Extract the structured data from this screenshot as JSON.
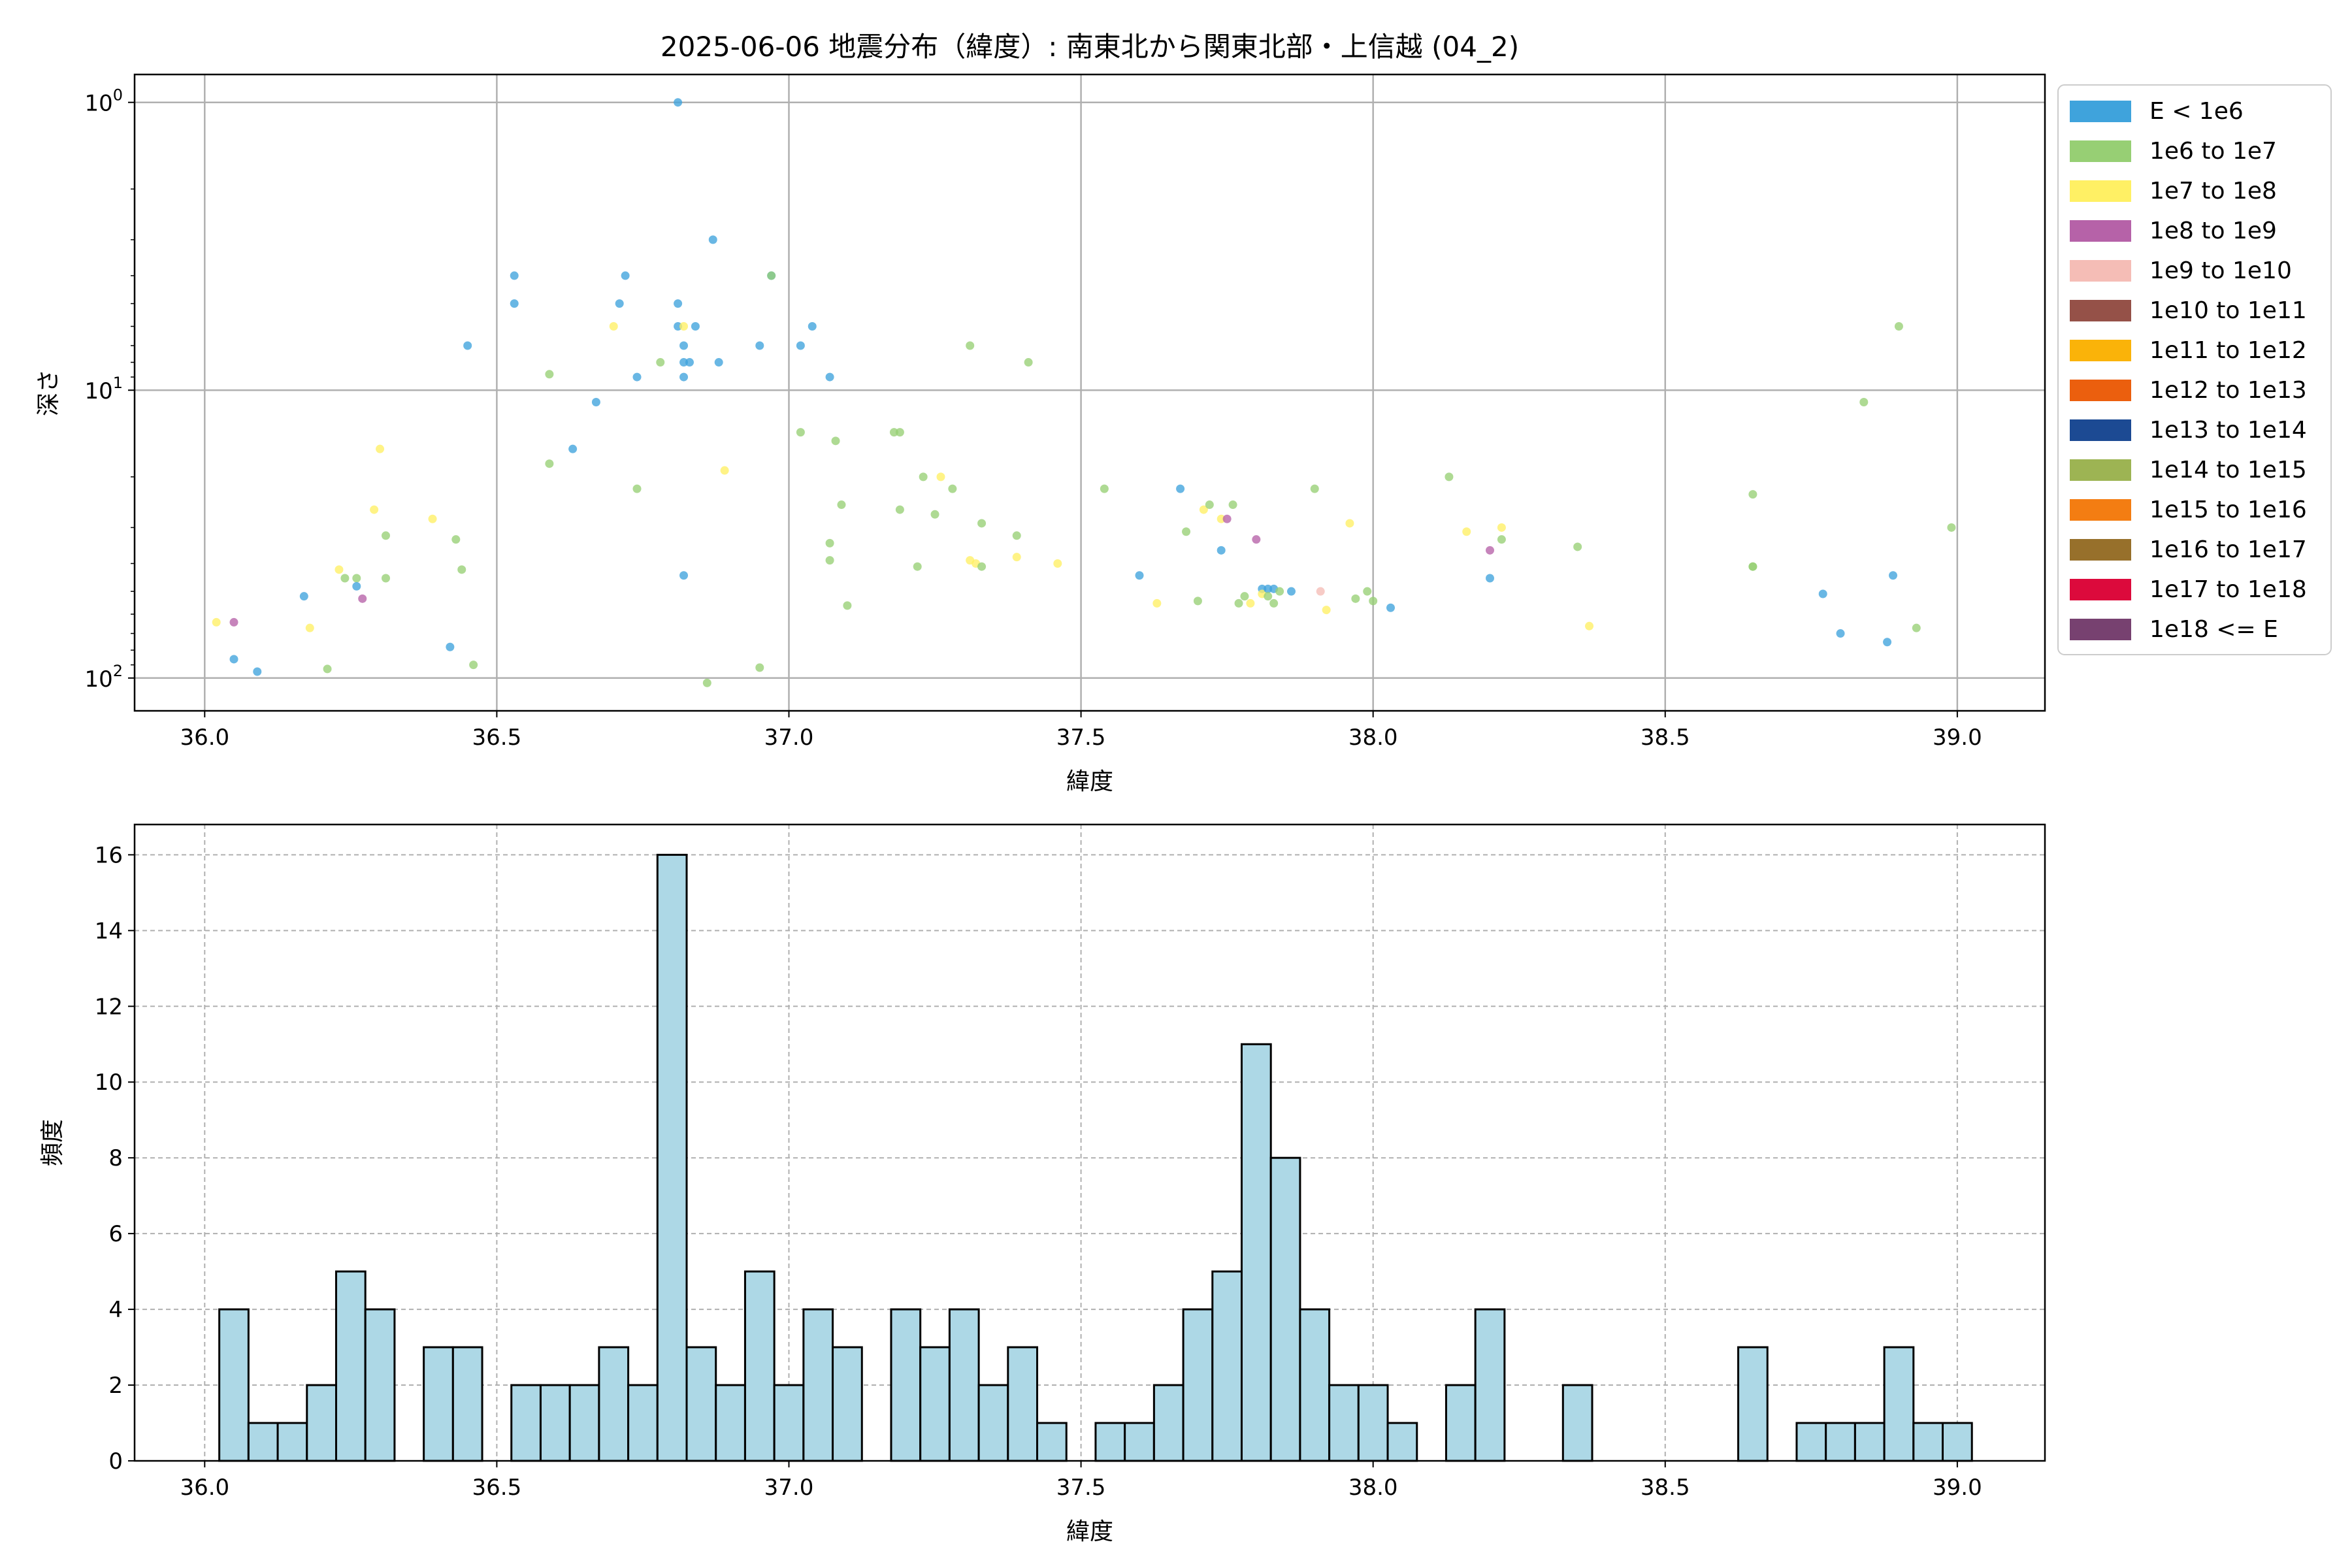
{
  "figure": {
    "title": "2025-06-06 地震分布（緯度）: 南東北から関東北部・上信越 (04_2)"
  },
  "chart_data": [
    {
      "type": "scatter",
      "title": "2025-06-06 地震分布（緯度）: 南東北から関東北部・上信越 (04_2)",
      "xlabel": "緯度",
      "ylabel": "深さ",
      "xlim": [
        35.88,
        39.15
      ],
      "ylim": [
        130,
        0.8
      ],
      "y_scale": "log",
      "y_inverted": true,
      "x_ticks": [
        "36.0",
        "36.5",
        "37.0",
        "37.5",
        "38.0",
        "38.5",
        "39.0"
      ],
      "x_tick_values": [
        36.0,
        36.5,
        37.0,
        37.5,
        38.0,
        38.5,
        39.0
      ],
      "y_ticks": [
        {
          "value": 1,
          "base": "10",
          "exp": "0"
        },
        {
          "value": 10,
          "base": "10",
          "exp": "1"
        },
        {
          "value": 100,
          "base": "10",
          "exp": "2"
        }
      ],
      "grid": true,
      "legend_position": "outside-right-top",
      "legend": [
        {
          "label": "E < 1e6",
          "color": "#3fa3dc"
        },
        {
          "label": "1e6 to 1e7",
          "color": "#97cf74"
        },
        {
          "label": "1e7 to 1e8",
          "color": "#fff064"
        },
        {
          "label": "1e8 to 1e9",
          "color": "#b662a8"
        },
        {
          "label": "1e9 to 1e10",
          "color": "#f5bdb6"
        },
        {
          "label": "1e10 to 1e11",
          "color": "#955148"
        },
        {
          "label": "1e11 to 1e12",
          "color": "#fab309"
        },
        {
          "label": "1e12 to 1e13",
          "color": "#eb5f0e"
        },
        {
          "label": "1e13 to 1e14",
          "color": "#1c4a93"
        },
        {
          "label": "1e14 to 1e15",
          "color": "#9db453"
        },
        {
          "label": "1e15 to 1e16",
          "color": "#f37d12"
        },
        {
          "label": "1e16 to 1e17",
          "color": "#97702b"
        },
        {
          "label": "1e17 to 1e18",
          "color": "#dc0a3c"
        },
        {
          "label": "1e18 <= E",
          "color": "#774170"
        }
      ],
      "points": [
        {
          "x": 36.02,
          "y": 64,
          "c": 2
        },
        {
          "x": 36.05,
          "y": 64,
          "c": 3
        },
        {
          "x": 36.05,
          "y": 86,
          "c": 0
        },
        {
          "x": 36.09,
          "y": 95,
          "c": 0
        },
        {
          "x": 36.17,
          "y": 52,
          "c": 0
        },
        {
          "x": 36.18,
          "y": 67,
          "c": 2
        },
        {
          "x": 36.21,
          "y": 93,
          "c": 1
        },
        {
          "x": 36.23,
          "y": 42,
          "c": 2
        },
        {
          "x": 36.24,
          "y": 45,
          "c": 1
        },
        {
          "x": 36.26,
          "y": 45,
          "c": 1
        },
        {
          "x": 36.26,
          "y": 48,
          "c": 0
        },
        {
          "x": 36.27,
          "y": 53,
          "c": 3
        },
        {
          "x": 36.29,
          "y": 26,
          "c": 2
        },
        {
          "x": 36.3,
          "y": 16,
          "c": 2
        },
        {
          "x": 36.31,
          "y": 45,
          "c": 1
        },
        {
          "x": 36.31,
          "y": 32,
          "c": 1
        },
        {
          "x": 36.39,
          "y": 28,
          "c": 2
        },
        {
          "x": 36.42,
          "y": 78,
          "c": 0
        },
        {
          "x": 36.43,
          "y": 33,
          "c": 1
        },
        {
          "x": 36.44,
          "y": 42,
          "c": 1
        },
        {
          "x": 36.45,
          "y": 7,
          "c": 0
        },
        {
          "x": 36.46,
          "y": 90,
          "c": 1
        },
        {
          "x": 36.53,
          "y": 4,
          "c": 0
        },
        {
          "x": 36.53,
          "y": 5,
          "c": 0
        },
        {
          "x": 36.59,
          "y": 8.8,
          "c": 1
        },
        {
          "x": 36.59,
          "y": 18,
          "c": 1
        },
        {
          "x": 36.63,
          "y": 16,
          "c": 0
        },
        {
          "x": 36.67,
          "y": 11,
          "c": 0
        },
        {
          "x": 36.7,
          "y": 6,
          "c": 2
        },
        {
          "x": 36.71,
          "y": 5,
          "c": 0
        },
        {
          "x": 36.72,
          "y": 4,
          "c": 0
        },
        {
          "x": 36.74,
          "y": 9,
          "c": 0
        },
        {
          "x": 36.74,
          "y": 22,
          "c": 1
        },
        {
          "x": 36.78,
          "y": 8,
          "c": 1
        },
        {
          "x": 36.81,
          "y": 1,
          "c": 0
        },
        {
          "x": 36.81,
          "y": 5,
          "c": 0
        },
        {
          "x": 36.81,
          "y": 6,
          "c": 0
        },
        {
          "x": 36.82,
          "y": 6,
          "c": 2
        },
        {
          "x": 36.82,
          "y": 8,
          "c": 0
        },
        {
          "x": 36.82,
          "y": 9,
          "c": 0
        },
        {
          "x": 36.82,
          "y": 7,
          "c": 0
        },
        {
          "x": 36.82,
          "y": 44,
          "c": 0
        },
        {
          "x": 36.83,
          "y": 8,
          "c": 0
        },
        {
          "x": 36.84,
          "y": 6,
          "c": 0
        },
        {
          "x": 36.86,
          "y": 104,
          "c": 1
        },
        {
          "x": 36.87,
          "y": 3,
          "c": 0
        },
        {
          "x": 36.88,
          "y": 8,
          "c": 0
        },
        {
          "x": 36.89,
          "y": 19,
          "c": 2
        },
        {
          "x": 36.95,
          "y": 7,
          "c": 0
        },
        {
          "x": 36.95,
          "y": 92,
          "c": 1
        },
        {
          "x": 36.97,
          "y": 4,
          "c": 0
        },
        {
          "x": 36.97,
          "y": 4,
          "c": 1
        },
        {
          "x": 37.02,
          "y": 7,
          "c": 0
        },
        {
          "x": 37.02,
          "y": 14,
          "c": 1
        },
        {
          "x": 37.04,
          "y": 6,
          "c": 0
        },
        {
          "x": 37.07,
          "y": 9,
          "c": 0
        },
        {
          "x": 37.07,
          "y": 34,
          "c": 1
        },
        {
          "x": 37.07,
          "y": 39,
          "c": 1
        },
        {
          "x": 37.08,
          "y": 15,
          "c": 1
        },
        {
          "x": 37.09,
          "y": 25,
          "c": 1
        },
        {
          "x": 37.1,
          "y": 56,
          "c": 1
        },
        {
          "x": 37.18,
          "y": 14,
          "c": 1
        },
        {
          "x": 37.19,
          "y": 14,
          "c": 1
        },
        {
          "x": 37.19,
          "y": 26,
          "c": 1
        },
        {
          "x": 37.22,
          "y": 41,
          "c": 1
        },
        {
          "x": 37.23,
          "y": 20,
          "c": 1
        },
        {
          "x": 37.25,
          "y": 27,
          "c": 1
        },
        {
          "x": 37.26,
          "y": 20,
          "c": 2
        },
        {
          "x": 37.28,
          "y": 22,
          "c": 1
        },
        {
          "x": 37.31,
          "y": 7,
          "c": 1
        },
        {
          "x": 37.31,
          "y": 39,
          "c": 2
        },
        {
          "x": 37.32,
          "y": 40,
          "c": 2
        },
        {
          "x": 37.33,
          "y": 29,
          "c": 1
        },
        {
          "x": 37.33,
          "y": 41,
          "c": 1
        },
        {
          "x": 37.39,
          "y": 32,
          "c": 1
        },
        {
          "x": 37.39,
          "y": 38,
          "c": 2
        },
        {
          "x": 37.41,
          "y": 8,
          "c": 1
        },
        {
          "x": 37.46,
          "y": 40,
          "c": 2
        },
        {
          "x": 37.54,
          "y": 22,
          "c": 1
        },
        {
          "x": 37.6,
          "y": 44,
          "c": 0
        },
        {
          "x": 37.63,
          "y": 55,
          "c": 2
        },
        {
          "x": 37.67,
          "y": 22,
          "c": 0
        },
        {
          "x": 37.68,
          "y": 31,
          "c": 1
        },
        {
          "x": 37.7,
          "y": 54,
          "c": 1
        },
        {
          "x": 37.71,
          "y": 26,
          "c": 2
        },
        {
          "x": 37.72,
          "y": 25,
          "c": 1
        },
        {
          "x": 37.74,
          "y": 28,
          "c": 2
        },
        {
          "x": 37.74,
          "y": 36,
          "c": 0
        },
        {
          "x": 37.75,
          "y": 28,
          "c": 3
        },
        {
          "x": 37.76,
          "y": 25,
          "c": 1
        },
        {
          "x": 37.77,
          "y": 55,
          "c": 1
        },
        {
          "x": 37.78,
          "y": 52,
          "c": 1
        },
        {
          "x": 37.79,
          "y": 55,
          "c": 2
        },
        {
          "x": 37.8,
          "y": 33,
          "c": 3
        },
        {
          "x": 37.81,
          "y": 49,
          "c": 0
        },
        {
          "x": 37.81,
          "y": 51,
          "c": 2
        },
        {
          "x": 37.82,
          "y": 49,
          "c": 0
        },
        {
          "x": 37.82,
          "y": 52,
          "c": 1
        },
        {
          "x": 37.83,
          "y": 55,
          "c": 1
        },
        {
          "x": 37.83,
          "y": 49,
          "c": 0
        },
        {
          "x": 37.84,
          "y": 50,
          "c": 1
        },
        {
          "x": 37.86,
          "y": 50,
          "c": 0
        },
        {
          "x": 37.9,
          "y": 22,
          "c": 1
        },
        {
          "x": 37.91,
          "y": 50,
          "c": 4
        },
        {
          "x": 37.92,
          "y": 58,
          "c": 2
        },
        {
          "x": 37.96,
          "y": 29,
          "c": 2
        },
        {
          "x": 37.97,
          "y": 53,
          "c": 1
        },
        {
          "x": 37.99,
          "y": 50,
          "c": 1
        },
        {
          "x": 38.0,
          "y": 54,
          "c": 1
        },
        {
          "x": 38.03,
          "y": 57,
          "c": 0
        },
        {
          "x": 38.13,
          "y": 20,
          "c": 1
        },
        {
          "x": 38.16,
          "y": 31,
          "c": 2
        },
        {
          "x": 38.2,
          "y": 36,
          "c": 3
        },
        {
          "x": 38.2,
          "y": 45,
          "c": 0
        },
        {
          "x": 38.22,
          "y": 30,
          "c": 2
        },
        {
          "x": 38.22,
          "y": 33,
          "c": 1
        },
        {
          "x": 38.35,
          "y": 35,
          "c": 1
        },
        {
          "x": 38.37,
          "y": 66,
          "c": 2
        },
        {
          "x": 38.65,
          "y": 23,
          "c": 1
        },
        {
          "x": 38.65,
          "y": 41,
          "c": 1
        },
        {
          "x": 38.65,
          "y": 41,
          "c": 1
        },
        {
          "x": 38.77,
          "y": 51,
          "c": 0
        },
        {
          "x": 38.8,
          "y": 70,
          "c": 0
        },
        {
          "x": 38.84,
          "y": 11,
          "c": 1
        },
        {
          "x": 38.88,
          "y": 75,
          "c": 0
        },
        {
          "x": 38.89,
          "y": 44,
          "c": 0
        },
        {
          "x": 38.9,
          "y": 6,
          "c": 1
        },
        {
          "x": 38.93,
          "y": 67,
          "c": 1
        },
        {
          "x": 38.99,
          "y": 30,
          "c": 1
        }
      ]
    },
    {
      "type": "bar",
      "subtype": "histogram",
      "xlabel": "緯度",
      "ylabel": "頻度",
      "xlim": [
        35.88,
        39.15
      ],
      "ylim": [
        0,
        16.8
      ],
      "x_ticks": [
        "36.0",
        "36.5",
        "37.0",
        "37.5",
        "38.0",
        "38.5",
        "39.0"
      ],
      "x_tick_values": [
        36.0,
        36.5,
        37.0,
        37.5,
        38.0,
        38.5,
        39.0
      ],
      "y_ticks": [
        "0",
        "2",
        "4",
        "6",
        "8",
        "10",
        "12",
        "14",
        "16"
      ],
      "y_tick_values": [
        0,
        2,
        4,
        6,
        8,
        10,
        12,
        14,
        16
      ],
      "grid": true,
      "bar_color": "#add8e6",
      "bin_start": 36.025,
      "bin_width": 0.05,
      "values": [
        4,
        1,
        1,
        2,
        5,
        4,
        0,
        3,
        3,
        0,
        2,
        2,
        2,
        3,
        2,
        16,
        3,
        2,
        5,
        2,
        4,
        3,
        0,
        4,
        3,
        4,
        2,
        3,
        1,
        0,
        1,
        1,
        2,
        4,
        5,
        11,
        8,
        4,
        2,
        2,
        1,
        0,
        2,
        4,
        0,
        0,
        2,
        0,
        0,
        0,
        0,
        0,
        3,
        0,
        1,
        1,
        1,
        3,
        1,
        1
      ]
    }
  ]
}
